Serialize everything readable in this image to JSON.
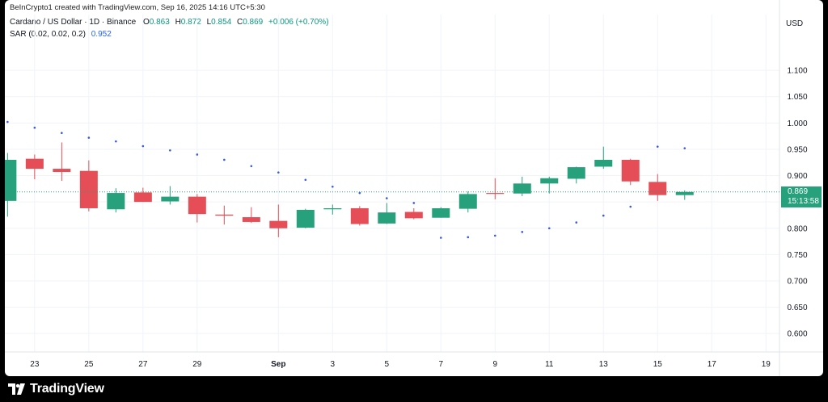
{
  "credit": "BeInCrypto1 created with TradingView.com, Sep 16, 2025 14:16 UTC+5:30",
  "legend": {
    "symbol": "Cardano / US Dollar · 1D · Binance",
    "o_label": "O",
    "o_value": "0.863",
    "h_label": "H",
    "h_value": "0.872",
    "l_label": "L",
    "l_value": "0.854",
    "c_label": "C",
    "c_value": "0.869",
    "change": "+0.006 (+0.70%)",
    "sar_label": "SAR (0.02, 0.02, 0.2)",
    "sar_value": "0.952"
  },
  "currency": "USD",
  "price_badge": {
    "price": "0.869",
    "countdown": "15:13:58"
  },
  "brand": {
    "name": "TradingView",
    "icon": "tradingview-logo-icon"
  },
  "colors": {
    "up": "#26a17b",
    "down": "#e54d57",
    "sar": "#3b5bdb",
    "last_price_line": "#26a17b"
  },
  "chart_data": {
    "type": "candlestick",
    "y_ticks": [
      "1.100",
      "1.050",
      "1.000",
      "0.950",
      "0.900",
      "0.850",
      "0.800",
      "0.750",
      "0.700",
      "0.650",
      "0.600"
    ],
    "x_ticks": [
      {
        "label": "23",
        "day": 23
      },
      {
        "label": "25",
        "day": 25
      },
      {
        "label": "27",
        "day": 27
      },
      {
        "label": "29",
        "day": 29
      },
      {
        "label": "Sep",
        "day": 32
      },
      {
        "label": "3",
        "day": 34
      },
      {
        "label": "5",
        "day": 36
      },
      {
        "label": "7",
        "day": 38
      },
      {
        "label": "9",
        "day": 40
      },
      {
        "label": "11",
        "day": 42
      },
      {
        "label": "13",
        "day": 44
      },
      {
        "label": "15",
        "day": 46
      },
      {
        "label": "17",
        "day": 48
      },
      {
        "label": "19",
        "day": 50
      }
    ],
    "ylim": [
      0.565,
      1.16
    ],
    "xlim": [
      21.9,
      50.5
    ],
    "last_price": 0.869,
    "candles": [
      {
        "day": 22,
        "o": 0.852,
        "h": 0.943,
        "l": 0.822,
        "c": 0.93
      },
      {
        "day": 23,
        "o": 0.932,
        "h": 0.94,
        "l": 0.893,
        "c": 0.913
      },
      {
        "day": 24,
        "o": 0.913,
        "h": 0.963,
        "l": 0.89,
        "c": 0.907
      },
      {
        "day": 25,
        "o": 0.909,
        "h": 0.929,
        "l": 0.832,
        "c": 0.838
      },
      {
        "day": 26,
        "o": 0.836,
        "h": 0.876,
        "l": 0.83,
        "c": 0.867
      },
      {
        "day": 27,
        "o": 0.868,
        "h": 0.877,
        "l": 0.85,
        "c": 0.85
      },
      {
        "day": 28,
        "o": 0.851,
        "h": 0.88,
        "l": 0.845,
        "c": 0.86
      },
      {
        "day": 29,
        "o": 0.86,
        "h": 0.865,
        "l": 0.811,
        "c": 0.827
      },
      {
        "day": 30,
        "o": 0.826,
        "h": 0.843,
        "l": 0.807,
        "c": 0.824
      },
      {
        "day": 31,
        "o": 0.821,
        "h": 0.84,
        "l": 0.81,
        "c": 0.812
      },
      {
        "day": 32,
        "o": 0.814,
        "h": 0.845,
        "l": 0.783,
        "c": 0.8
      },
      {
        "day": 33,
        "o": 0.801,
        "h": 0.837,
        "l": 0.8,
        "c": 0.835
      },
      {
        "day": 34,
        "o": 0.836,
        "h": 0.845,
        "l": 0.826,
        "c": 0.838
      },
      {
        "day": 35,
        "o": 0.838,
        "h": 0.842,
        "l": 0.805,
        "c": 0.808
      },
      {
        "day": 36,
        "o": 0.809,
        "h": 0.848,
        "l": 0.808,
        "c": 0.83
      },
      {
        "day": 37,
        "o": 0.831,
        "h": 0.838,
        "l": 0.817,
        "c": 0.819
      },
      {
        "day": 38,
        "o": 0.82,
        "h": 0.84,
        "l": 0.82,
        "c": 0.838
      },
      {
        "day": 39,
        "o": 0.837,
        "h": 0.87,
        "l": 0.83,
        "c": 0.865
      },
      {
        "day": 40,
        "o": 0.867,
        "h": 0.895,
        "l": 0.855,
        "c": 0.866
      },
      {
        "day": 41,
        "o": 0.866,
        "h": 0.898,
        "l": 0.861,
        "c": 0.885
      },
      {
        "day": 42,
        "o": 0.885,
        "h": 0.898,
        "l": 0.866,
        "c": 0.895
      },
      {
        "day": 43,
        "o": 0.894,
        "h": 0.917,
        "l": 0.885,
        "c": 0.916
      },
      {
        "day": 44,
        "o": 0.917,
        "h": 0.955,
        "l": 0.913,
        "c": 0.93
      },
      {
        "day": 45,
        "o": 0.93,
        "h": 0.932,
        "l": 0.882,
        "c": 0.889
      },
      {
        "day": 46,
        "o": 0.888,
        "h": 0.903,
        "l": 0.852,
        "c": 0.863
      },
      {
        "day": 47,
        "o": 0.863,
        "h": 0.872,
        "l": 0.854,
        "c": 0.869
      }
    ],
    "sar": [
      {
        "day": 22,
        "v": 1.002
      },
      {
        "day": 23,
        "v": 0.991
      },
      {
        "day": 24,
        "v": 0.981
      },
      {
        "day": 25,
        "v": 0.972
      },
      {
        "day": 26,
        "v": 0.965
      },
      {
        "day": 27,
        "v": 0.956
      },
      {
        "day": 28,
        "v": 0.948
      },
      {
        "day": 29,
        "v": 0.94
      },
      {
        "day": 30,
        "v": 0.93
      },
      {
        "day": 31,
        "v": 0.918
      },
      {
        "day": 32,
        "v": 0.906
      },
      {
        "day": 33,
        "v": 0.892
      },
      {
        "day": 34,
        "v": 0.879
      },
      {
        "day": 35,
        "v": 0.867
      },
      {
        "day": 36,
        "v": 0.857
      },
      {
        "day": 37,
        "v": 0.848
      },
      {
        "day": 38,
        "v": 0.782
      },
      {
        "day": 39,
        "v": 0.783
      },
      {
        "day": 40,
        "v": 0.786
      },
      {
        "day": 41,
        "v": 0.793
      },
      {
        "day": 42,
        "v": 0.8
      },
      {
        "day": 43,
        "v": 0.811
      },
      {
        "day": 44,
        "v": 0.824
      },
      {
        "day": 45,
        "v": 0.841
      },
      {
        "day": 46,
        "v": 0.955
      },
      {
        "day": 47,
        "v": 0.952
      }
    ]
  }
}
